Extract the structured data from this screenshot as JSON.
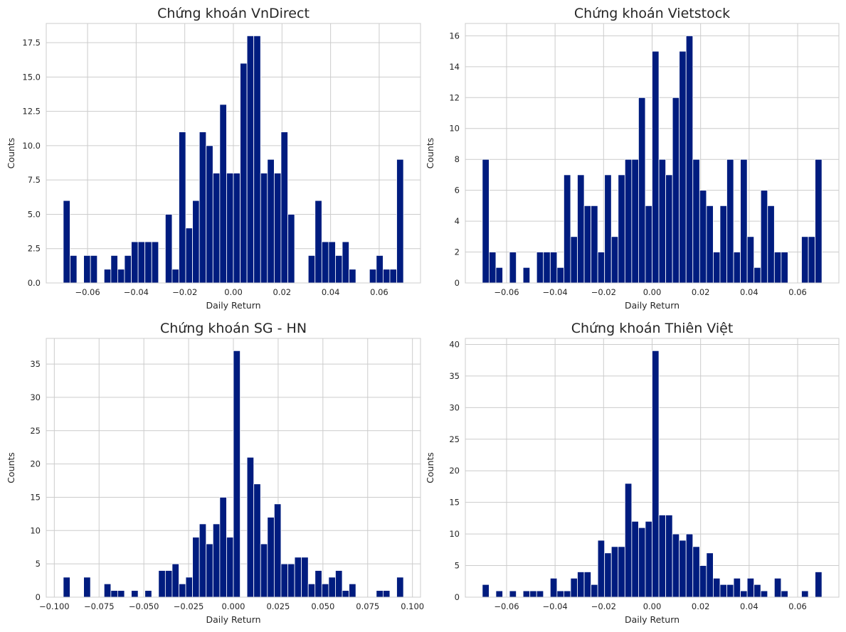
{
  "chart_data": [
    {
      "type": "bar",
      "title": "Chứng khoán VnDirect",
      "xlabel": "Daily Return",
      "ylabel": "Counts",
      "xlim": [
        -0.077,
        0.077
      ],
      "ylim": [
        0,
        18.9
      ],
      "xticks": [
        -0.06,
        -0.04,
        -0.02,
        0.0,
        0.02,
        0.04,
        0.06
      ],
      "xtick_labels": [
        "−0.06",
        "−0.04",
        "−0.02",
        "0.00",
        "0.02",
        "0.04",
        "0.06"
      ],
      "yticks": [
        0,
        2.5,
        5,
        7.5,
        10,
        12.5,
        15,
        17.5
      ],
      "ytick_labels": [
        "0.0",
        "2.5",
        "5.0",
        "7.5",
        "10.0",
        "12.5",
        "15.0",
        "17.5"
      ],
      "bins": {
        "start": -0.07,
        "end": 0.07,
        "count": 50
      },
      "values": [
        6,
        2,
        0,
        2,
        2,
        0,
        1,
        2,
        1,
        2,
        3,
        3,
        3,
        3,
        0,
        5,
        1,
        11,
        4,
        6,
        11,
        10,
        8,
        13,
        8,
        8,
        16,
        18,
        18,
        8,
        9,
        8,
        11,
        5,
        0,
        0,
        2,
        6,
        3,
        3,
        2,
        3,
        1,
        0,
        0,
        1,
        2,
        1,
        1,
        9
      ],
      "color": "#001c7f",
      "grid": true
    },
    {
      "type": "bar",
      "title": "Chứng khoán Vietstock",
      "xlabel": "Daily Return",
      "ylabel": "Counts",
      "xlim": [
        -0.077,
        0.077
      ],
      "ylim": [
        0,
        16.8
      ],
      "xticks": [
        -0.06,
        -0.04,
        -0.02,
        0.0,
        0.02,
        0.04,
        0.06
      ],
      "xtick_labels": [
        "−0.06",
        "−0.04",
        "−0.02",
        "0.00",
        "0.02",
        "0.04",
        "0.06"
      ],
      "yticks": [
        0,
        2,
        4,
        6,
        8,
        10,
        12,
        14,
        16
      ],
      "ytick_labels": [
        "0",
        "2",
        "4",
        "6",
        "8",
        "10",
        "12",
        "14",
        "16"
      ],
      "bins": {
        "start": -0.07,
        "end": 0.07,
        "count": 50
      },
      "values": [
        8,
        2,
        1,
        0,
        2,
        0,
        1,
        0,
        2,
        2,
        2,
        1,
        7,
        3,
        7,
        5,
        5,
        2,
        7,
        3,
        7,
        8,
        8,
        12,
        5,
        15,
        8,
        7,
        12,
        15,
        16,
        8,
        6,
        5,
        2,
        5,
        8,
        2,
        8,
        3,
        1,
        6,
        5,
        2,
        2,
        0,
        0,
        3,
        3,
        8
      ],
      "color": "#001c7f",
      "grid": true
    },
    {
      "type": "bar",
      "title": "Chứng khoán SG - HN",
      "xlabel": "Daily Return",
      "ylabel": "Counts",
      "xlim": [
        -0.1045,
        0.1045
      ],
      "ylim": [
        0,
        38.85
      ],
      "xticks": [
        -0.1,
        -0.075,
        -0.05,
        -0.025,
        0.0,
        0.025,
        0.05,
        0.075,
        0.1
      ],
      "xtick_labels": [
        "−0.100",
        "−0.075",
        "−0.050",
        "−0.025",
        "0.000",
        "0.025",
        "0.050",
        "0.075",
        "0.100"
      ],
      "yticks": [
        0,
        5,
        10,
        15,
        20,
        25,
        30,
        35
      ],
      "ytick_labels": [
        "0",
        "5",
        "10",
        "15",
        "20",
        "25",
        "30",
        "35"
      ],
      "bins": {
        "start": -0.095,
        "end": 0.095,
        "count": 50
      },
      "values": [
        3,
        0,
        0,
        3,
        0,
        0,
        2,
        1,
        1,
        0,
        1,
        0,
        1,
        0,
        4,
        4,
        5,
        2,
        3,
        9,
        11,
        8,
        11,
        15,
        9,
        37,
        0,
        21,
        17,
        8,
        12,
        14,
        5,
        5,
        6,
        6,
        2,
        4,
        2,
        3,
        4,
        1,
        2,
        0,
        0,
        0,
        1,
        1,
        0,
        3
      ],
      "color": "#001c7f",
      "grid": true
    },
    {
      "type": "bar",
      "title": "Chứng khoán Thiên Việt",
      "xlabel": "Daily Return",
      "ylabel": "Counts",
      "xlim": [
        -0.077,
        0.077
      ],
      "ylim": [
        0,
        40.95
      ],
      "xticks": [
        -0.06,
        -0.04,
        -0.02,
        0.0,
        0.02,
        0.04,
        0.06
      ],
      "xtick_labels": [
        "−0.06",
        "−0.04",
        "−0.02",
        "0.00",
        "0.02",
        "0.04",
        "0.06"
      ],
      "yticks": [
        0,
        5,
        10,
        15,
        20,
        25,
        30,
        35,
        40
      ],
      "ytick_labels": [
        "0",
        "5",
        "10",
        "15",
        "20",
        "25",
        "30",
        "35",
        "40"
      ],
      "bins": {
        "start": -0.07,
        "end": 0.07,
        "count": 50
      },
      "values": [
        2,
        0,
        1,
        0,
        1,
        0,
        1,
        1,
        1,
        0,
        3,
        1,
        1,
        3,
        4,
        4,
        2,
        9,
        7,
        8,
        8,
        18,
        12,
        11,
        12,
        39,
        13,
        13,
        10,
        9,
        10,
        8,
        5,
        7,
        3,
        2,
        2,
        3,
        1,
        3,
        2,
        1,
        0,
        3,
        1,
        0,
        0,
        1,
        0,
        4
      ],
      "color": "#001c7f",
      "grid": true
    }
  ]
}
